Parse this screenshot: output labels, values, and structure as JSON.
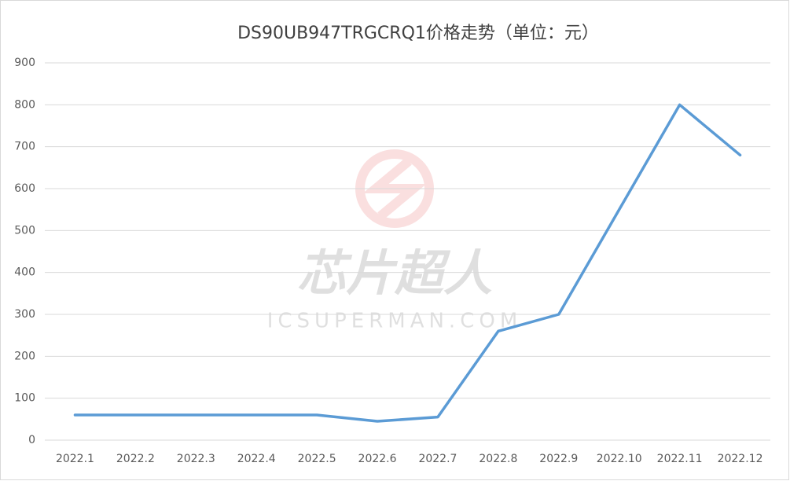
{
  "chart_data": {
    "type": "line",
    "title": "DS90UB947TRGCRQ1价格走势（单位：元）",
    "categories": [
      "2022.1",
      "2022.2",
      "2022.3",
      "2022.4",
      "2022.5",
      "2022.6",
      "2022.7",
      "2022.8",
      "2022.9",
      "2022.10",
      "2022.11",
      "2022.12"
    ],
    "series": [
      {
        "name": "价格",
        "color": "#5b9bd5",
        "values": [
          60,
          60,
          60,
          60,
          60,
          45,
          55,
          260,
          300,
          550,
          800,
          680
        ]
      }
    ],
    "ylim": [
      0,
      900
    ],
    "yticks": [
      0,
      100,
      200,
      300,
      400,
      500,
      600,
      700,
      800,
      900
    ],
    "grid": true,
    "watermark": {
      "title": "芯片超人",
      "subtitle": "ICSUPERMAN.COM"
    }
  }
}
